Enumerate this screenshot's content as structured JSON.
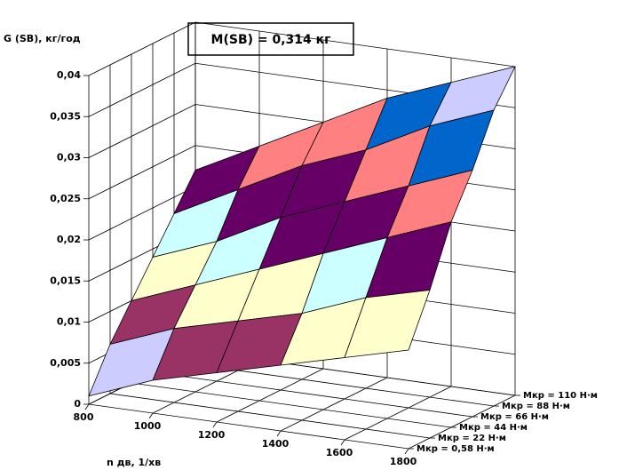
{
  "chart_data": {
    "type": "surface",
    "title": "M(SB) = 0,314 кг",
    "y_label": "G (SB), кг/год",
    "x_label": "n дв, 1/хв",
    "categories": [
      "800",
      "1000",
      "1200",
      "1400",
      "1600",
      "1800"
    ],
    "series": [
      {
        "name": "Mкр = 0,58 Н·м",
        "values": [
          0.001,
          0.004,
          0.006,
          0.008,
          0.01,
          0.012
        ]
      },
      {
        "name": "Mкр = 22 Н·м",
        "values": [
          0.006,
          0.009,
          0.011,
          0.013,
          0.016,
          0.018
        ]
      },
      {
        "name": "Mкр = 44 Н·м",
        "values": [
          0.01,
          0.013,
          0.016,
          0.019,
          0.022,
          0.025
        ]
      },
      {
        "name": "Mкр = 66 Н·м",
        "values": [
          0.014,
          0.017,
          0.021,
          0.024,
          0.027,
          0.03
        ]
      },
      {
        "name": "Mкр = 88 Н·м",
        "values": [
          0.018,
          0.022,
          0.026,
          0.029,
          0.033,
          0.036
        ]
      },
      {
        "name": "Mкр = 110 Н·м",
        "values": [
          0.022,
          0.026,
          0.03,
          0.034,
          0.037,
          0.04
        ]
      }
    ],
    "ylim": [
      0,
      0.04
    ],
    "yticks": [
      0,
      {
        "value": 0.005,
        "label": "0,005"
      },
      {
        "value": 0.01,
        "label": "0,01"
      },
      {
        "value": 0.015,
        "label": "0,015"
      },
      {
        "value": 0.02,
        "label": "0,02"
      },
      {
        "value": 0.025,
        "label": "0,025"
      },
      {
        "value": 0.03,
        "label": "0,03"
      },
      {
        "value": 0.035,
        "label": "0,035"
      },
      {
        "value": 0.04,
        "label": "0,04"
      }
    ],
    "band_colors": [
      "#ccccff",
      "#993366",
      "#ffffcc",
      "#ccffff",
      "#660066",
      "#ff8080",
      "#0066cc",
      "#ccccff"
    ],
    "grid": true
  }
}
